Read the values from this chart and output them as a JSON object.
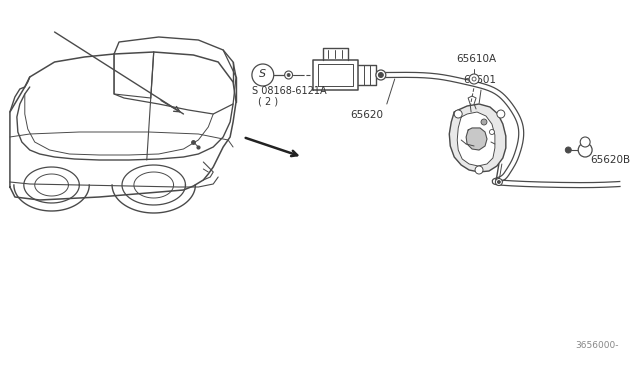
{
  "bg_color": "#ffffff",
  "line_color": "#4a4a4a",
  "text_color": "#333333",
  "fig_width": 6.4,
  "fig_height": 3.72,
  "dpi": 100,
  "labels": {
    "bolt": "S 08168-6121A\n  ( 2 )",
    "cable": "65620",
    "latch": "65601",
    "cable_end": "65620B",
    "screw": "65610A",
    "ref": "3656000-"
  }
}
